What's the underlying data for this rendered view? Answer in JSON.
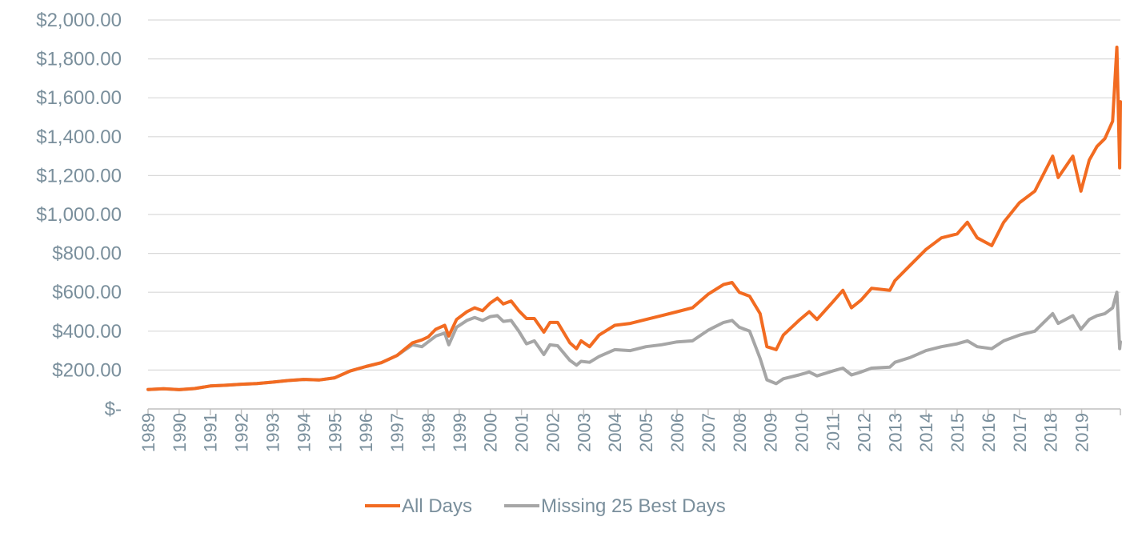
{
  "chart_data": {
    "type": "line",
    "title": "",
    "xlabel": "",
    "ylabel": "",
    "ylim": [
      0,
      2000
    ],
    "y_ticks": [
      0,
      200,
      400,
      600,
      800,
      1000,
      1200,
      1400,
      1600,
      1800,
      2000
    ],
    "y_tick_labels": [
      "$-",
      "$200.00",
      "$400.00",
      "$600.00",
      "$800.00",
      "$1,000.00",
      "$1,200.00",
      "$1,400.00",
      "$1,600.00",
      "$1,800.00",
      "$2,000.00"
    ],
    "x_tick_labels": [
      "1989",
      "1990",
      "1991",
      "1992",
      "1993",
      "1994",
      "1995",
      "1996",
      "1997",
      "1998",
      "1999",
      "2000",
      "2001",
      "2002",
      "2003",
      "2004",
      "2005",
      "2006",
      "2007",
      "2008",
      "2009",
      "2010",
      "2011",
      "2012",
      "2013",
      "2014",
      "2015",
      "2016",
      "2017",
      "2018",
      "2019"
    ],
    "x_tick_dates": [
      "1989-01-01",
      "1990-01-01",
      "1991-01-01",
      "1992-01-01",
      "1993-01-01",
      "1994-01-01",
      "1995-01-01",
      "1996-01-01",
      "1997-01-01",
      "1998-01-01",
      "1999-01-01",
      "2000-01-01",
      "2001-01-01",
      "2002-01-01",
      "2003-01-01",
      "2004-01-01",
      "2005-01-01",
      "2006-01-01",
      "2007-01-01",
      "2008-01-01",
      "2009-01-01",
      "2010-01-01",
      "2011-01-01",
      "2012-01-01",
      "2013-01-01",
      "2014-01-01",
      "2015-01-01",
      "2016-01-01",
      "2017-01-01",
      "2018-01-01",
      "2019-01-01"
    ],
    "xlim": [
      "1989-01-01",
      "2020-03-31"
    ],
    "grid": "horizontal",
    "legend_position": "bottom",
    "series": [
      {
        "name": "All Days",
        "color": "#f26b21",
        "points": [
          [
            "1989-01-01",
            100
          ],
          [
            "1989-07-01",
            104
          ],
          [
            "1990-01-01",
            99
          ],
          [
            "1990-07-01",
            105
          ],
          [
            "1991-01-01",
            118
          ],
          [
            "1991-07-01",
            122
          ],
          [
            "1992-01-01",
            127
          ],
          [
            "1992-07-01",
            131
          ],
          [
            "1993-01-01",
            138
          ],
          [
            "1993-07-01",
            146
          ],
          [
            "1994-01-01",
            152
          ],
          [
            "1994-07-01",
            149
          ],
          [
            "1995-01-01",
            160
          ],
          [
            "1995-07-01",
            195
          ],
          [
            "1996-01-01",
            218
          ],
          [
            "1996-07-01",
            238
          ],
          [
            "1997-01-01",
            275
          ],
          [
            "1997-07-01",
            340
          ],
          [
            "1997-10-20",
            355
          ],
          [
            "1998-01-01",
            370
          ],
          [
            "1998-04-01",
            410
          ],
          [
            "1998-07-15",
            430
          ],
          [
            "1998-09-01",
            375
          ],
          [
            "1998-12-01",
            460
          ],
          [
            "1999-04-01",
            500
          ],
          [
            "1999-07-01",
            520
          ],
          [
            "1999-10-01",
            505
          ],
          [
            "2000-01-01",
            545
          ],
          [
            "2000-03-24",
            570
          ],
          [
            "2000-06-01",
            540
          ],
          [
            "2000-09-01",
            555
          ],
          [
            "2000-12-01",
            505
          ],
          [
            "2001-03-01",
            465
          ],
          [
            "2001-06-01",
            465
          ],
          [
            "2001-09-21",
            395
          ],
          [
            "2001-12-01",
            445
          ],
          [
            "2002-03-01",
            445
          ],
          [
            "2002-07-23",
            340
          ],
          [
            "2002-10-09",
            310
          ],
          [
            "2002-12-01",
            350
          ],
          [
            "2003-03-11",
            320
          ],
          [
            "2003-07-01",
            380
          ],
          [
            "2004-01-01",
            430
          ],
          [
            "2004-07-01",
            440
          ],
          [
            "2005-01-01",
            460
          ],
          [
            "2005-07-01",
            480
          ],
          [
            "2006-01-01",
            500
          ],
          [
            "2006-07-01",
            520
          ],
          [
            "2007-01-01",
            590
          ],
          [
            "2007-07-01",
            640
          ],
          [
            "2007-10-09",
            650
          ],
          [
            "2008-01-01",
            600
          ],
          [
            "2008-05-01",
            580
          ],
          [
            "2008-09-01",
            490
          ],
          [
            "2008-11-20",
            320
          ],
          [
            "2009-03-09",
            305
          ],
          [
            "2009-06-01",
            380
          ],
          [
            "2009-12-01",
            455
          ],
          [
            "2010-04-01",
            500
          ],
          [
            "2010-07-01",
            460
          ],
          [
            "2011-01-01",
            550
          ],
          [
            "2011-05-01",
            610
          ],
          [
            "2011-08-10",
            520
          ],
          [
            "2011-12-01",
            560
          ],
          [
            "2012-04-01",
            620
          ],
          [
            "2012-11-01",
            610
          ],
          [
            "2013-01-01",
            660
          ],
          [
            "2013-07-01",
            740
          ],
          [
            "2014-01-01",
            820
          ],
          [
            "2014-07-01",
            880
          ],
          [
            "2015-01-01",
            900
          ],
          [
            "2015-05-01",
            960
          ],
          [
            "2015-08-25",
            880
          ],
          [
            "2016-02-11",
            840
          ],
          [
            "2016-07-01",
            960
          ],
          [
            "2017-01-01",
            1060
          ],
          [
            "2017-07-01",
            1120
          ],
          [
            "2018-01-26",
            1300
          ],
          [
            "2018-04-01",
            1190
          ],
          [
            "2018-09-20",
            1300
          ],
          [
            "2018-12-24",
            1120
          ],
          [
            "2019-04-01",
            1280
          ],
          [
            "2019-07-01",
            1350
          ],
          [
            "2019-10-01",
            1390
          ],
          [
            "2019-12-31",
            1480
          ],
          [
            "2020-02-19",
            1860
          ],
          [
            "2020-03-23",
            1240
          ],
          [
            "2020-03-31",
            1580
          ]
        ]
      },
      {
        "name": "Missing 25 Best Days",
        "color": "#a6a6a6",
        "points": [
          [
            "1989-01-01",
            100
          ],
          [
            "1989-07-01",
            104
          ],
          [
            "1990-01-01",
            99
          ],
          [
            "1990-07-01",
            105
          ],
          [
            "1991-01-01",
            118
          ],
          [
            "1991-07-01",
            122
          ],
          [
            "1992-01-01",
            127
          ],
          [
            "1992-07-01",
            131
          ],
          [
            "1993-01-01",
            138
          ],
          [
            "1993-07-01",
            146
          ],
          [
            "1994-01-01",
            152
          ],
          [
            "1994-07-01",
            149
          ],
          [
            "1995-01-01",
            160
          ],
          [
            "1995-07-01",
            195
          ],
          [
            "1996-01-01",
            218
          ],
          [
            "1996-07-01",
            238
          ],
          [
            "1997-01-01",
            275
          ],
          [
            "1997-07-01",
            330
          ],
          [
            "1997-10-20",
            320
          ],
          [
            "1998-01-01",
            345
          ],
          [
            "1998-04-01",
            375
          ],
          [
            "1998-07-15",
            390
          ],
          [
            "1998-09-01",
            330
          ],
          [
            "1998-12-01",
            420
          ],
          [
            "1999-04-01",
            455
          ],
          [
            "1999-07-01",
            470
          ],
          [
            "1999-10-01",
            455
          ],
          [
            "2000-01-01",
            475
          ],
          [
            "2000-03-24",
            480
          ],
          [
            "2000-06-01",
            450
          ],
          [
            "2000-09-01",
            455
          ],
          [
            "2000-12-01",
            400
          ],
          [
            "2001-03-01",
            335
          ],
          [
            "2001-06-01",
            350
          ],
          [
            "2001-09-21",
            280
          ],
          [
            "2001-12-01",
            330
          ],
          [
            "2002-03-01",
            325
          ],
          [
            "2002-07-23",
            250
          ],
          [
            "2002-10-09",
            225
          ],
          [
            "2002-12-01",
            245
          ],
          [
            "2003-03-11",
            240
          ],
          [
            "2003-07-01",
            270
          ],
          [
            "2004-01-01",
            305
          ],
          [
            "2004-07-01",
            300
          ],
          [
            "2005-01-01",
            320
          ],
          [
            "2005-07-01",
            330
          ],
          [
            "2006-01-01",
            345
          ],
          [
            "2006-07-01",
            350
          ],
          [
            "2007-01-01",
            405
          ],
          [
            "2007-07-01",
            445
          ],
          [
            "2007-10-09",
            455
          ],
          [
            "2008-01-01",
            420
          ],
          [
            "2008-05-01",
            400
          ],
          [
            "2008-09-01",
            260
          ],
          [
            "2008-11-20",
            150
          ],
          [
            "2009-03-09",
            130
          ],
          [
            "2009-06-01",
            155
          ],
          [
            "2009-12-01",
            175
          ],
          [
            "2010-04-01",
            190
          ],
          [
            "2010-07-01",
            170
          ],
          [
            "2011-01-01",
            195
          ],
          [
            "2011-05-01",
            210
          ],
          [
            "2011-08-10",
            175
          ],
          [
            "2011-12-01",
            190
          ],
          [
            "2012-04-01",
            210
          ],
          [
            "2012-11-01",
            215
          ],
          [
            "2013-01-01",
            240
          ],
          [
            "2013-07-01",
            265
          ],
          [
            "2014-01-01",
            300
          ],
          [
            "2014-07-01",
            320
          ],
          [
            "2015-01-01",
            335
          ],
          [
            "2015-05-01",
            350
          ],
          [
            "2015-08-25",
            320
          ],
          [
            "2016-02-11",
            310
          ],
          [
            "2016-07-01",
            350
          ],
          [
            "2017-01-01",
            380
          ],
          [
            "2017-07-01",
            400
          ],
          [
            "2018-01-26",
            490
          ],
          [
            "2018-04-01",
            440
          ],
          [
            "2018-09-20",
            480
          ],
          [
            "2018-12-24",
            410
          ],
          [
            "2019-04-01",
            460
          ],
          [
            "2019-07-01",
            480
          ],
          [
            "2019-10-01",
            490
          ],
          [
            "2019-12-31",
            520
          ],
          [
            "2020-02-19",
            600
          ],
          [
            "2020-03-23",
            310
          ],
          [
            "2020-03-31",
            345
          ]
        ]
      }
    ]
  }
}
